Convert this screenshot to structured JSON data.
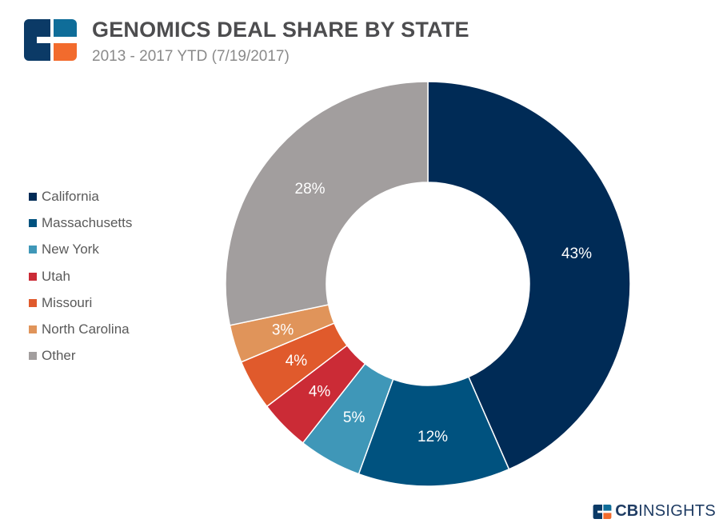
{
  "header": {
    "title": "GENOMICS DEAL SHARE BY STATE",
    "subtitle": "2013 - 2017 YTD (7/19/2017)"
  },
  "brand": {
    "bold": "CB",
    "rest": "INSIGHTS"
  },
  "chart_data": {
    "type": "pie",
    "donut": true,
    "title": "GENOMICS DEAL SHARE BY STATE",
    "subtitle": "2013 - 2017 YTD (7/19/2017)",
    "legend_position": "left",
    "categories": [
      "California",
      "Massachusetts",
      "New York",
      "Utah",
      "Missouri",
      "North Carolina",
      "Other"
    ],
    "values": [
      43,
      12,
      5,
      4,
      4,
      3,
      28
    ],
    "labels": [
      "43%",
      "12%",
      "5%",
      "4%",
      "4%",
      "3%",
      "28%"
    ],
    "colors": [
      "#002b56",
      "#00527f",
      "#3f97b8",
      "#cb2b36",
      "#e05a2c",
      "#e0945a",
      "#a29e9e"
    ]
  }
}
